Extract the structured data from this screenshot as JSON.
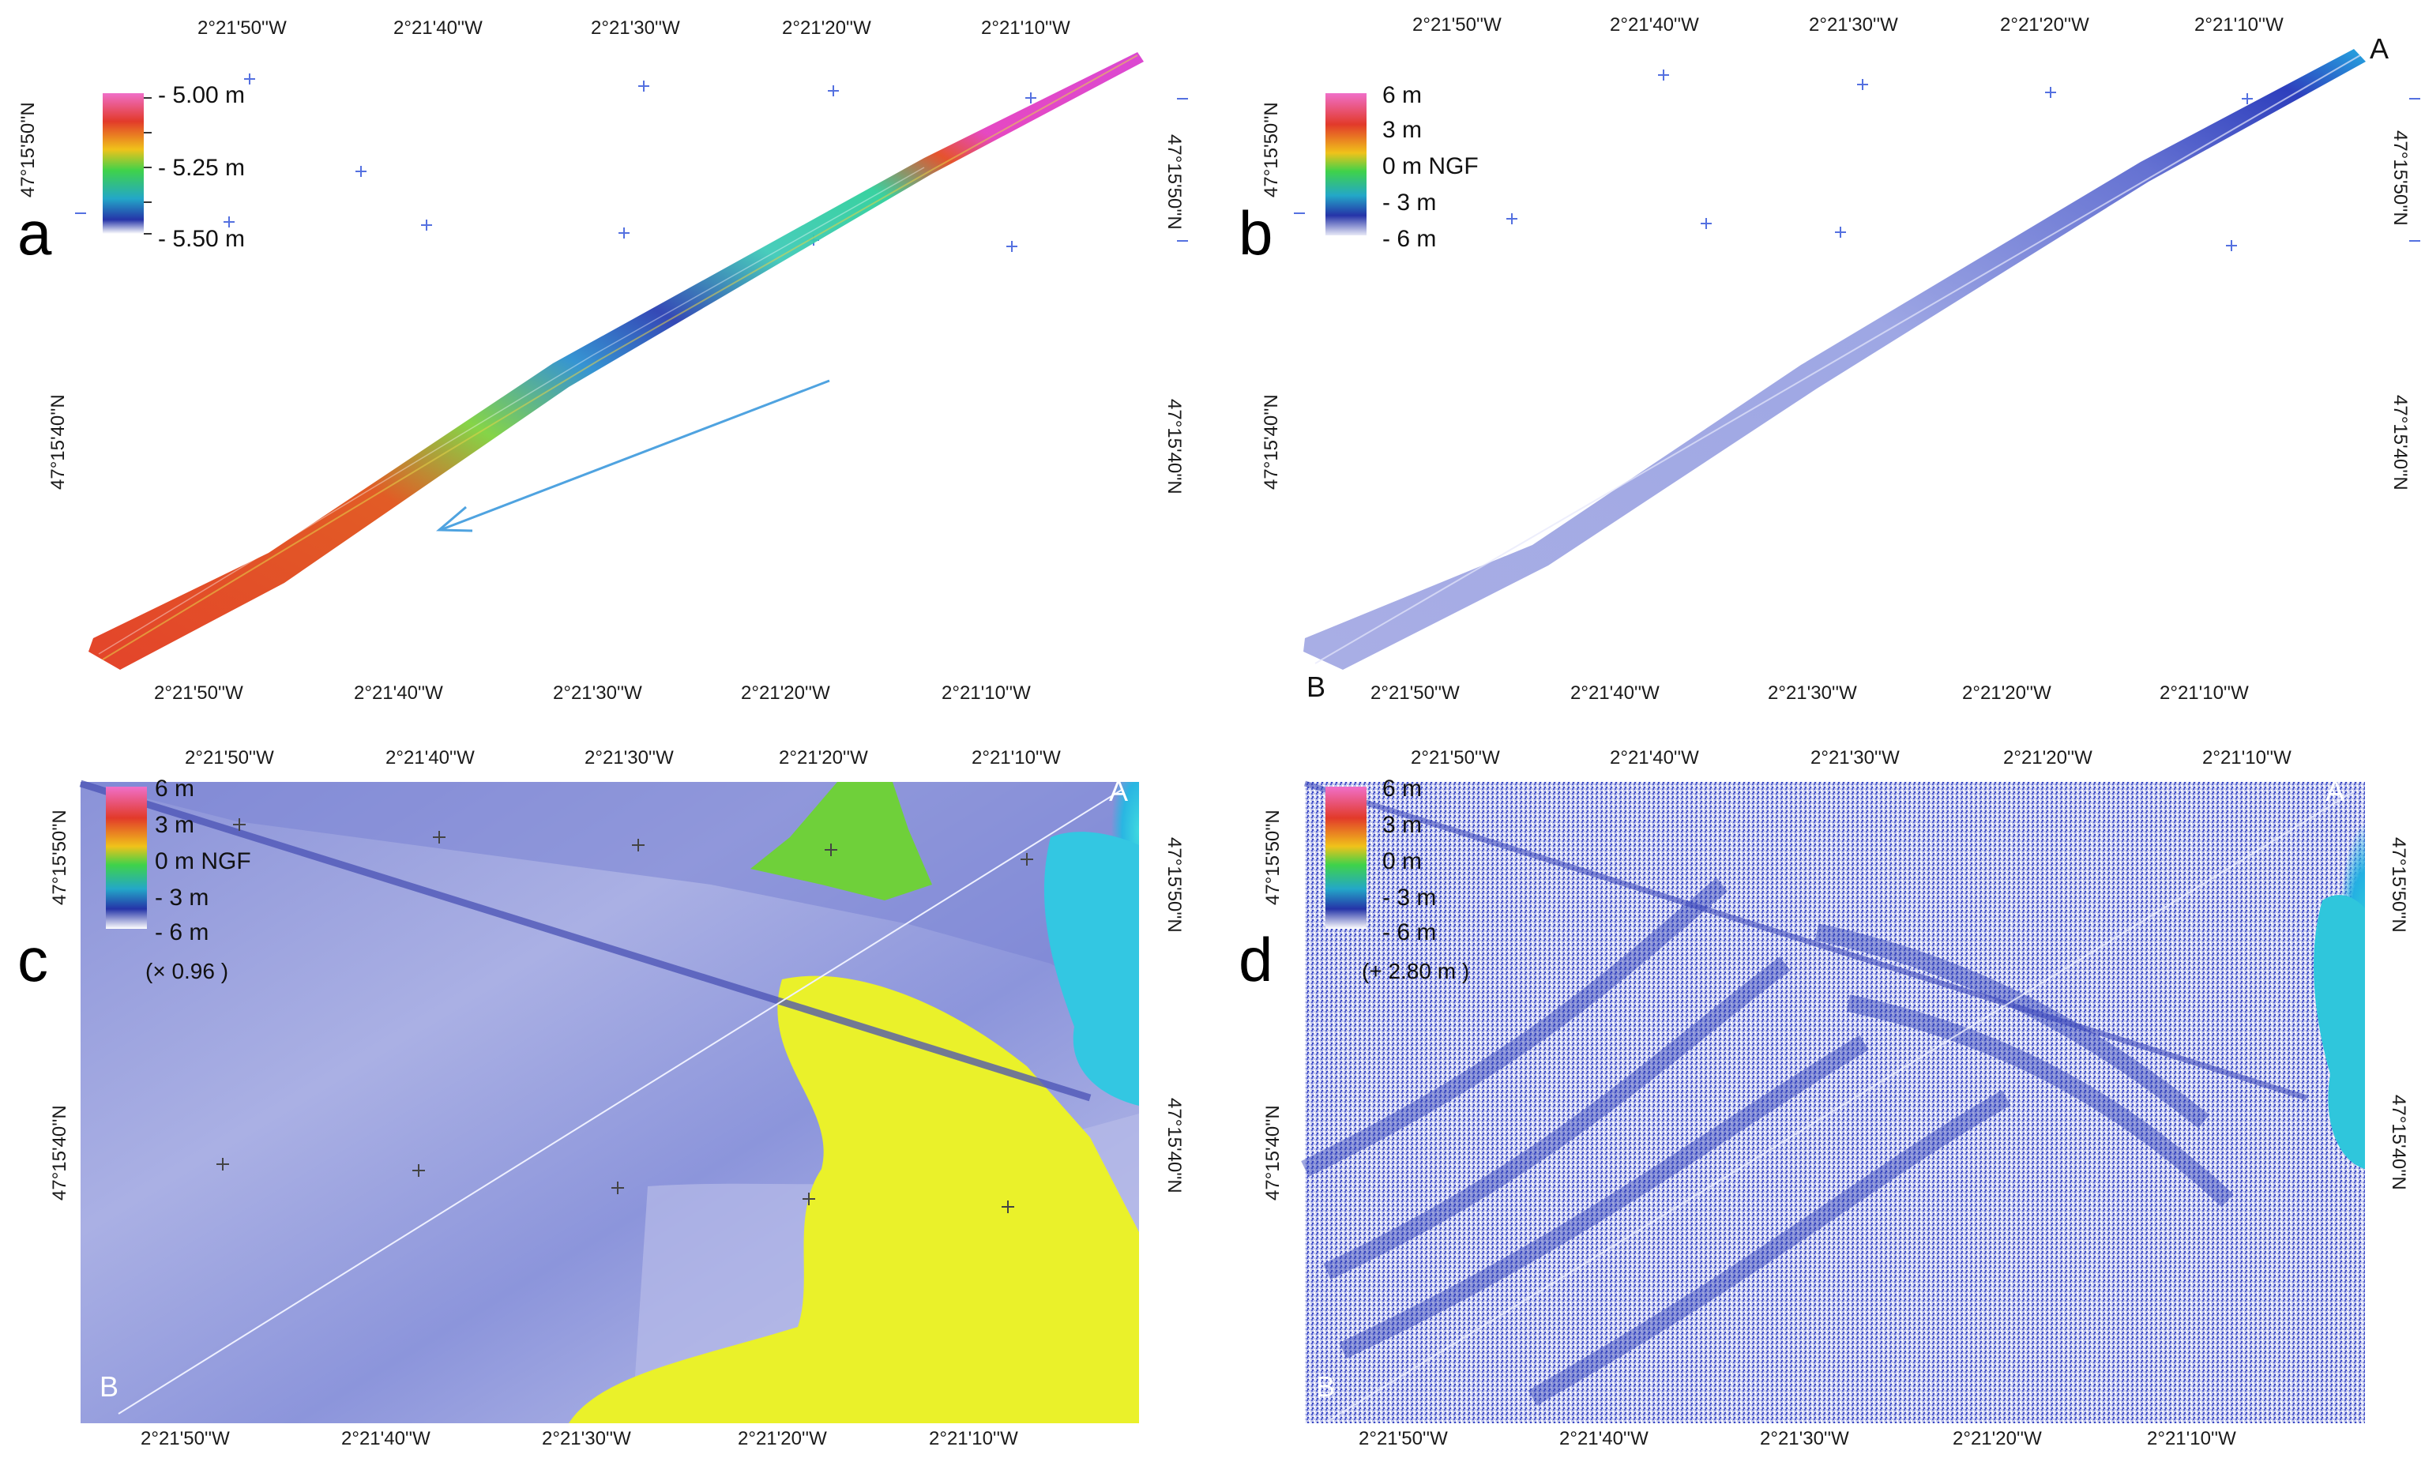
{
  "lon_labels": [
    "2°21'50''W",
    "2°21'40''W",
    "2°21'30''W",
    "2°21'20''W",
    "2°21'10''W"
  ],
  "lat_labels": {
    "upper": "47°15'50''N",
    "lower": "47°15'40''N"
  },
  "panels": {
    "a": {
      "letter": "a",
      "legend": {
        "labels": [
          "- 5.00 m",
          "- 5.25 m",
          "- 5.50 m"
        ]
      },
      "colors": {
        "top": "#e43fbf",
        "mid": "#4cd3b7",
        "low": "#2934a8",
        "red": "#e23a1f"
      }
    },
    "b": {
      "letter": "b",
      "legend": {
        "labels": [
          "6 m",
          "3 m",
          "0 m NGF",
          "- 3 m",
          "- 6 m"
        ]
      },
      "endpoint_a": "A",
      "endpoint_b": "B"
    },
    "c": {
      "letter": "c",
      "legend": {
        "labels": [
          "6 m",
          "3 m",
          "0 m NGF",
          "- 3 m",
          "- 6 m"
        ],
        "note": "(× 0.96 )"
      },
      "endpoint_a": "A",
      "endpoint_b": "B"
    },
    "d": {
      "letter": "d",
      "legend": {
        "labels": [
          "6 m",
          "3 m",
          "0 m",
          "- 3 m",
          "- 6 m"
        ],
        "note": "(+ 2.80 m )"
      },
      "endpoint_a": "A",
      "endpoint_b": "B"
    }
  }
}
